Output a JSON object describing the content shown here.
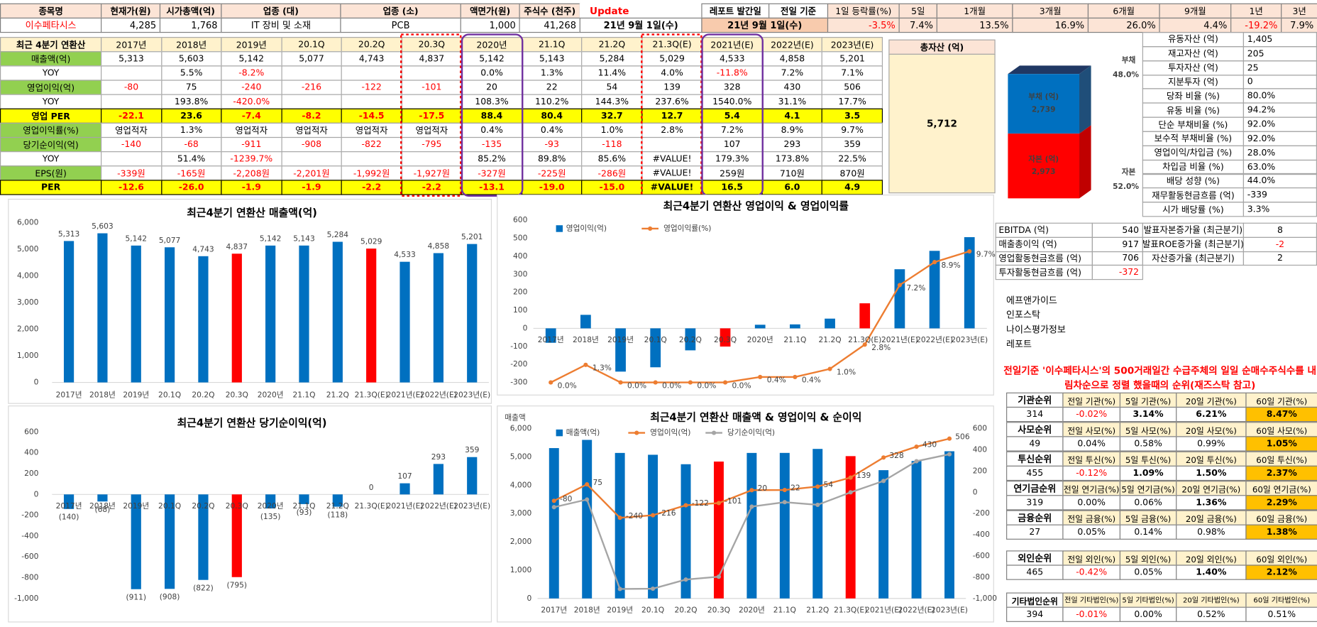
{
  "header_table": {
    "labels": [
      "종목명",
      "현재가(원)",
      "시가총액(억)",
      "업종 (대)",
      "업종 (소)",
      "액면가(원)",
      "주식수 (천주)",
      "Update",
      "레포트 발간일",
      "전일 기준",
      "1일 등락률(%)",
      "5일",
      "1개월",
      "3개월",
      "6개월",
      "9개월",
      "1년",
      "3년"
    ],
    "values": [
      "이수페타시스",
      "4,285",
      "1,768",
      "IT 장비 및 소재",
      "PCB",
      "1,000",
      "41,268",
      "21년 9월 1일(수)",
      "21년 9월 1일(수)",
      "-3.5%",
      "7.4%",
      "13.5%",
      "16.9%",
      "26.0%",
      "4.4%",
      "-19.2%",
      "7.9%"
    ]
  },
  "main_table": {
    "corner": "최근 4분기 연환산",
    "columns": [
      "2017년",
      "2018년",
      "2019년",
      "20.1Q",
      "20.2Q",
      "20.3Q",
      "2020년",
      "21.1Q",
      "21.2Q",
      "21.3Q(E)",
      "2021년(E)",
      "2022년(E)",
      "2023년(E)"
    ],
    "rows": [
      {
        "label": "매출액(억)",
        "cells": [
          "5,313",
          "5,603",
          "5,142",
          "5,077",
          "4,743",
          "4,837",
          "5,142",
          "5,143",
          "5,284",
          "5,029",
          "4,533",
          "4,858",
          "5,201"
        ]
      },
      {
        "label": "YOY",
        "cells": [
          null,
          "5.5%",
          "-8.2%",
          null,
          null,
          null,
          "0.0%",
          "1.3%",
          "11.4%",
          "4.0%",
          "-11.8%",
          "7.2%",
          "7.1%"
        ]
      },
      {
        "label": "영업이익(억)",
        "cells": [
          "-80",
          "75",
          "-240",
          "-216",
          "-122",
          "-101",
          "20",
          "22",
          "54",
          "139",
          "328",
          "430",
          "506"
        ]
      },
      {
        "label": "YOY",
        "cells": [
          null,
          "193.8%",
          "-420.0%",
          null,
          null,
          null,
          "108.3%",
          "110.2%",
          "144.3%",
          "237.6%",
          "1540.0%",
          "31.1%",
          "17.7%"
        ]
      },
      {
        "label": "영업 PER",
        "cells": [
          "-22.1",
          "23.6",
          "-7.4",
          "-8.2",
          "-14.5",
          "-17.5",
          "88.4",
          "80.4",
          "32.7",
          "12.7",
          "5.4",
          "4.1",
          "3.5"
        ]
      },
      {
        "label": "영업이익률(%)",
        "cells": [
          "영업적자",
          "1.3%",
          "영업적자",
          "영업적자",
          "영업적자",
          "영업적자",
          "0.4%",
          "0.4%",
          "1.0%",
          "2.8%",
          "7.2%",
          "8.9%",
          "9.7%"
        ]
      },
      {
        "label": "당기순이익(억)",
        "cells": [
          "-140",
          "-68",
          "-911",
          "-908",
          "-822",
          "-795",
          "-135",
          "-93",
          "-118",
          null,
          "107",
          "293",
          "359"
        ]
      },
      {
        "label": "YOY",
        "cells": [
          null,
          "51.4%",
          "-1239.7%",
          null,
          null,
          null,
          "85.2%",
          "89.8%",
          "85.6%",
          "#VALUE!",
          "179.3%",
          "173.8%",
          "22.5%"
        ]
      },
      {
        "label": "EPS(원)",
        "cells": [
          "-339원",
          "-165원",
          "-2,208원",
          "-2,201원",
          "-1,992원",
          "-1,927원",
          "-327원",
          "-225원",
          "-286원",
          "#VALUE!",
          "259원",
          "710원",
          "870원"
        ]
      },
      {
        "label": "PER",
        "cells": [
          "-12.6",
          "-26.0",
          "-1.9",
          "-1.9",
          "-2.2",
          "-2.2",
          "-13.1",
          "-19.0",
          "-15.0",
          "#VALUE!",
          "16.5",
          "6.0",
          "4.9"
        ]
      }
    ]
  },
  "asset_box": {
    "title": "총자산 (억)",
    "value": "5,712"
  },
  "ratio_table": [
    [
      "유동자산 (억)",
      "1,405"
    ],
    [
      "재고자산 (억)",
      "205"
    ],
    [
      "투자자산 (억)",
      "25"
    ],
    [
      "지분투자 (억)",
      "0"
    ],
    [
      "당좌 비율 (%)",
      "80.0%"
    ],
    [
      "유동 비율 (%)",
      "94.2%"
    ],
    [
      "단순 부채비율 (%)",
      "92.0%"
    ],
    [
      "보수적 부채비율 (%)",
      "92.0%"
    ],
    [
      "영업이익/차입금 (%)",
      "28.0%"
    ],
    [
      "차입금 비율 (%)",
      "63.0%"
    ],
    [
      "배당 성향 (%)",
      "44.0%"
    ],
    [
      "재무활동현금흐름 (억)",
      "-339"
    ],
    [
      "시가 배당률 (%)",
      "3.3%"
    ]
  ],
  "cash_table": [
    [
      "EBITDA (억)",
      "540"
    ],
    [
      "매출총이익 (억)",
      "917"
    ],
    [
      "영업활동현금흐름 (억)",
      "706"
    ],
    [
      "투자활동현금흐름 (억)",
      "-372"
    ]
  ],
  "growth_table": [
    [
      "발표자본증가율 (최근분기)",
      "8"
    ],
    [
      "발표ROE증가율 (최근분기)",
      "-2"
    ],
    [
      "자산증가율 (최근분기)",
      "2"
    ]
  ],
  "links": [
    "에프앤가이드",
    "인포스탁",
    "나이스평가정보",
    "레포트"
  ],
  "note": "전일기준 '이수페타시스'의 500거래일간 수급주체의 일일 순매수주식수를 내림차순으로 정렬 했을때의 순위(재즈스탁 참고)",
  "rank_tables": [
    {
      "headers": [
        "기관순위",
        "전일 기관(%)",
        "5일 기관(%)",
        "20일 기관(%)",
        "60일 기관(%)"
      ],
      "values": [
        "314",
        "-0.02%",
        "3.14%",
        "6.21%",
        "8.47%"
      ]
    },
    {
      "headers": [
        "사모순위",
        "전일 사모(%)",
        "5일 사모(%)",
        "20일 사모(%)",
        "60일 사모(%)"
      ],
      "values": [
        "49",
        "0.04%",
        "0.58%",
        "0.99%",
        "1.05%"
      ]
    },
    {
      "headers": [
        "투신순위",
        "전일 투신(%)",
        "5일 투신(%)",
        "20일 투신(%)",
        "60일 투신(%)"
      ],
      "values": [
        "455",
        "-0.12%",
        "1.09%",
        "1.50%",
        "2.37%"
      ]
    },
    {
      "headers": [
        "연기금순위",
        "전일 연기금(%)",
        "5일 연기금(%)",
        "20일 연기금(%)",
        "60일 연기금(%)"
      ],
      "values": [
        "319",
        "0.00%",
        "0.06%",
        "1.36%",
        "2.29%"
      ]
    },
    {
      "headers": [
        "금융순위",
        "전일 금융(%)",
        "5일 금융(%)",
        "20일 금융(%)",
        "60일 금융(%)"
      ],
      "values": [
        "27",
        "0.05%",
        "0.14%",
        "0.98%",
        "1.38%"
      ]
    },
    {
      "headers": [
        "외인순위",
        "전일 외인(%)",
        "5일 외인(%)",
        "20일 외인(%)",
        "60일 외인(%)"
      ],
      "values": [
        "465",
        "-0.42%",
        "0.05%",
        "1.40%",
        "2.12%"
      ]
    },
    {
      "headers": [
        "기타법인순위",
        "전일 기타법인(%)",
        "5일 기타법인(%)",
        "20일 기타법인(%)",
        "60일 기타법인(%)"
      ],
      "values": [
        "394",
        "-0.01%",
        "0.00%",
        "0.52%",
        "0.51%"
      ]
    }
  ],
  "chart_data": [
    {
      "type": "bar",
      "title": "최근4분기 연환산 매출액(억)",
      "categories": [
        "2017년",
        "2018년",
        "2019년",
        "20.1Q",
        "20.2Q",
        "20.3Q",
        "2020년",
        "21.1Q",
        "21.2Q",
        "21.3Q(E)",
        "2021년(E)",
        "2022년(E)",
        "2023년(E)"
      ],
      "values": [
        5313,
        5603,
        5142,
        5077,
        4743,
        4837,
        5142,
        5143,
        5284,
        5029,
        4533,
        4858,
        5201
      ],
      "value_labels": [
        "5,313",
        "5,603",
        "5,142",
        "5,077",
        "4,743",
        "4,837",
        "5,142",
        "5,143",
        "5,284",
        "5,029",
        "4,533",
        "4,858",
        "5,201"
      ],
      "colors": [
        "#0070c0",
        "#0070c0",
        "#0070c0",
        "#0070c0",
        "#0070c0",
        "#ff0000",
        "#0070c0",
        "#0070c0",
        "#0070c0",
        "#ff0000",
        "#0070c0",
        "#0070c0",
        "#0070c0"
      ],
      "ylim": [
        0,
        6000
      ],
      "yticks": [
        0,
        {
          "value": 1000,
          "label": "1,000"
        },
        {
          "value": 2000,
          "label": "2,000"
        },
        {
          "value": 3000,
          "label": "3,000"
        },
        {
          "value": 4000,
          "label": "4,000"
        },
        {
          "value": 5000,
          "label": "5,000"
        },
        {
          "value": 6000,
          "label": "6,000"
        }
      ],
      "grid": false
    },
    {
      "type": "bar_line",
      "title": "최근4분기 연환산 영업이익 & 영업이익률",
      "categories": [
        "2017년",
        "2018년",
        "2019년",
        "20.1Q",
        "20.2Q",
        "20.3Q",
        "2020년",
        "21.1Q",
        "21.2Q",
        "21.3Q(E)",
        "2021년(E)",
        "2022년(E)",
        "2023년(E)"
      ],
      "series": [
        {
          "name": "영업이익(억)",
          "kind": "bar",
          "color": "#0070c0",
          "values": [
            -80,
            75,
            -240,
            -216,
            -122,
            -101,
            20,
            22,
            54,
            139,
            328,
            430,
            506
          ],
          "colors": [
            "#0070c0",
            "#0070c0",
            "#0070c0",
            "#0070c0",
            "#0070c0",
            "#ff0000",
            "#0070c0",
            "#0070c0",
            "#0070c0",
            "#ff0000",
            "#0070c0",
            "#0070c0",
            "#0070c0"
          ]
        },
        {
          "name": "영업이익률(%)",
          "kind": "line",
          "axis": "y2",
          "color": "#ed7d31",
          "label_color": "#ff0000",
          "values": [
            0.0,
            1.3,
            0.0,
            0.0,
            0.0,
            0.0,
            0.4,
            0.4,
            1.0,
            2.8,
            7.2,
            8.9,
            9.7
          ],
          "value_labels": [
            "0.0%",
            "1.3%",
            "0.0%",
            "0.0%",
            "0.0%",
            "0.0%",
            "0.4%",
            "0.4%",
            "1.0%",
            "2.8%",
            "7.2%",
            "8.9%",
            "9.7%"
          ]
        }
      ],
      "ylim": [
        -300,
        600
      ],
      "yticks": [
        -300,
        -200,
        -100,
        0,
        100,
        200,
        300,
        400,
        500,
        600
      ],
      "y2lim": [
        0,
        12
      ],
      "legend": "top-left",
      "grid": false
    },
    {
      "type": "bar",
      "title": "최근4분기 연환산 당기순이익(억)",
      "categories": [
        "2017년",
        "2018년",
        "2019년",
        "20.1Q",
        "20.2Q",
        "20.3Q",
        "2020년",
        "21.1Q",
        "21.2Q",
        "21.3Q(E)",
        "2021년(E)",
        "2022년(E)",
        "2023년(E)"
      ],
      "values": [
        -140,
        -68,
        -911,
        -908,
        -822,
        -795,
        -135,
        -93,
        -118,
        0,
        107,
        293,
        359
      ],
      "value_labels": [
        "(140)",
        "(68)",
        "(911)",
        "(908)",
        "(822)",
        "(795)",
        "(135)",
        "(93)",
        "(118)",
        "0",
        "107",
        "293",
        "359"
      ],
      "colors": [
        "#0070c0",
        "#0070c0",
        "#0070c0",
        "#0070c0",
        "#0070c0",
        "#ff0000",
        "#0070c0",
        "#0070c0",
        "#0070c0",
        "#ff0000",
        "#0070c0",
        "#0070c0",
        "#0070c0"
      ],
      "ylim": [
        -1000,
        600
      ],
      "yticks": [
        {
          "value": -1000,
          "label": "-1,000"
        },
        -800,
        -600,
        -400,
        -200,
        0,
        200,
        400,
        600
      ],
      "grid": false
    },
    {
      "type": "bar_line",
      "title": "최근4분기 연환산 매출액 & 영업이익 & 순이익",
      "y_label": "매출액",
      "categories": [
        "2017년",
        "2018년",
        "2019년",
        "20.1Q",
        "20.2Q",
        "20.3Q",
        "2020년",
        "21.1Q",
        "21.2Q",
        "21.3Q(E)",
        "2021년(E)",
        "2022년(E)",
        "2023년(E)"
      ],
      "series": [
        {
          "name": "매출액(억)",
          "kind": "bar",
          "color": "#0070c0",
          "values": [
            5313,
            5603,
            5142,
            5077,
            4743,
            4837,
            5142,
            5143,
            5284,
            5029,
            4533,
            4858,
            5201
          ],
          "colors": [
            "#0070c0",
            "#0070c0",
            "#0070c0",
            "#0070c0",
            "#0070c0",
            "#ff0000",
            "#0070c0",
            "#0070c0",
            "#0070c0",
            "#ff0000",
            "#0070c0",
            "#0070c0",
            "#0070c0"
          ]
        },
        {
          "name": "영업이익(억)",
          "kind": "line",
          "axis": "y2",
          "color": "#ed7d31",
          "label_color": "#ff0000",
          "data_labels": true,
          "values": [
            -80,
            75,
            -240,
            -216,
            -122,
            -101,
            20,
            22,
            54,
            139,
            328,
            430,
            506
          ]
        },
        {
          "name": "당기순이익(억)",
          "kind": "line",
          "axis": "y2",
          "color": "#a5a5a5",
          "values": [
            -140,
            -68,
            -911,
            -908,
            -822,
            -795,
            -135,
            -93,
            -118,
            0,
            107,
            293,
            359
          ]
        }
      ],
      "ylim": [
        0,
        6000
      ],
      "yticks": [
        0,
        {
          "value": 1000,
          "label": "1,000"
        },
        {
          "value": 2000,
          "label": "2,000"
        },
        {
          "value": 3000,
          "label": "3,000"
        },
        {
          "value": 4000,
          "label": "4,000"
        },
        {
          "value": 5000,
          "label": "5,000"
        },
        {
          "value": 6000,
          "label": "6,000"
        }
      ],
      "y2lim": [
        -1000,
        600
      ],
      "y2ticks": [
        {
          "value": -1000,
          "label": "-1,000"
        },
        -800,
        -600,
        -400,
        -200,
        0,
        200,
        400,
        600
      ],
      "y2tick_color": "#ff0000",
      "legend": "top-left",
      "grid": false
    },
    {
      "type": "stacked_bar",
      "series": [
        {
          "name": "부채 (억)",
          "values": [
            2739
          ],
          "value_labels": [
            "2,739"
          ],
          "color": "#0070c0",
          "side_label": "부채",
          "share_label": "48.0%"
        },
        {
          "name": "자본 (억)",
          "values": [
            2973
          ],
          "value_labels": [
            "2,973"
          ],
          "color": "#ff0000",
          "side_label": "자본",
          "share_label": "52.0%"
        }
      ]
    }
  ]
}
